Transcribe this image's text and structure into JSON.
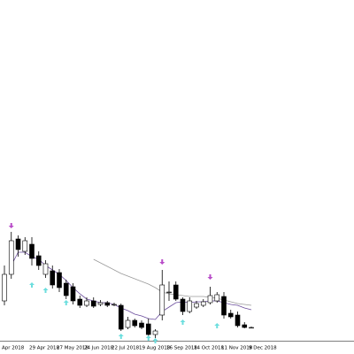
{
  "chart_data": {
    "type": "candlestick",
    "x": [
      "Apr 2018",
      null,
      null,
      null,
      "29 Apr 2018",
      null,
      null,
      null,
      "27 May 2018",
      null,
      null,
      null,
      "24 Jun 2018",
      null,
      null,
      null,
      "22 Jul 2018",
      null,
      null,
      null,
      "19 Aug 2018",
      null,
      null,
      null,
      "16 Sep 2018",
      null,
      null,
      null,
      "14 Oct 2018",
      null,
      null,
      null,
      "11 Nov 2018",
      null,
      null,
      null,
      "9 Dec 2018"
    ],
    "open": [
      45,
      75,
      115,
      101,
      109,
      96,
      75,
      79,
      77,
      65,
      61,
      47,
      40,
      45,
      41,
      43,
      41,
      40,
      15,
      23,
      20,
      19,
      7,
      29,
      55,
      63,
      47,
      33,
      38,
      40,
      43,
      45,
      50,
      31,
      29,
      18,
      15
    ],
    "high": [
      85,
      123,
      119,
      117,
      117,
      101,
      91,
      85,
      81,
      69,
      65,
      51,
      49,
      49,
      46,
      45,
      43,
      42,
      27,
      25,
      23,
      25,
      13,
      80,
      67,
      67,
      49,
      49,
      45,
      47,
      61,
      55,
      55,
      35,
      33,
      21,
      16
    ],
    "low": [
      40,
      70,
      95,
      97,
      85,
      80,
      71,
      59,
      55,
      47,
      41,
      37,
      38,
      37,
      39,
      38,
      39,
      11,
      13,
      15,
      13,
      5,
      3,
      23,
      45,
      45,
      29,
      31,
      36,
      38,
      41,
      43,
      25,
      25,
      15,
      14,
      14
    ],
    "close": [
      75,
      113,
      103,
      113,
      93,
      85,
      87,
      63,
      60,
      51,
      45,
      40,
      45,
      39,
      43,
      40,
      41,
      13,
      23,
      17,
      15,
      7,
      11,
      63,
      55,
      47,
      33,
      45,
      42,
      44,
      51,
      52,
      29,
      27,
      17,
      15,
      15
    ],
    "up_color": "#ffffff",
    "down_color": "#000000",
    "lines": [
      {
        "color": "#6a4c9c",
        "values": [
          null,
          85,
          100,
          100,
          95,
          92,
          85,
          80,
          75,
          68,
          60,
          53,
          47,
          45,
          43,
          43,
          41,
          37,
          34,
          30,
          28,
          25,
          24,
          33,
          38,
          43,
          44,
          43,
          44,
          44,
          45,
          45,
          43,
          41,
          40,
          37,
          35
        ]
      },
      {
        "color": "#9a9a9a",
        "values": [
          null,
          null,
          null,
          null,
          null,
          null,
          null,
          null,
          null,
          null,
          null,
          null,
          null,
          92,
          88,
          84,
          80,
          76,
          73,
          70,
          67,
          64,
          60,
          55,
          53,
          52,
          51,
          50,
          50,
          50,
          49,
          48,
          46,
          44,
          42,
          41,
          40
        ]
      }
    ],
    "down_arrows": {
      "color": "#b84cc8",
      "values": [
        null,
        128,
        null,
        null,
        null,
        null,
        null,
        null,
        null,
        null,
        null,
        null,
        null,
        null,
        null,
        null,
        null,
        null,
        null,
        null,
        null,
        null,
        null,
        87,
        null,
        null,
        null,
        null,
        null,
        null,
        70,
        null,
        null,
        null,
        null,
        null,
        null
      ]
    },
    "up_arrows": {
      "color": "#6cdede",
      "values": [
        null,
        null,
        null,
        null,
        65,
        null,
        59,
        null,
        null,
        45,
        null,
        null,
        null,
        null,
        null,
        null,
        null,
        7,
        null,
        null,
        null,
        5,
        2,
        null,
        null,
        null,
        23,
        null,
        null,
        null,
        null,
        19,
        null,
        null,
        null,
        null,
        null
      ]
    },
    "ylim": [
      0,
      385
    ]
  }
}
